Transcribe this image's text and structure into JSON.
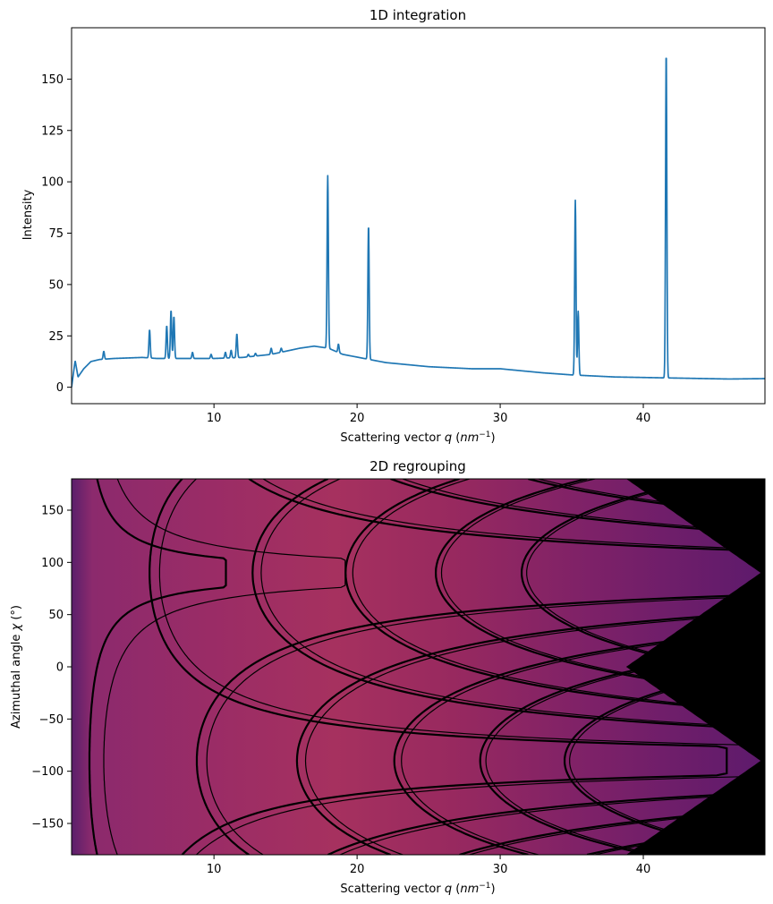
{
  "chart_data": [
    {
      "type": "line",
      "title": "1D integration",
      "xlabel": "Scattering vector q (nm⁻¹)",
      "ylabel": "Intensity",
      "xlim": [
        0.05,
        48.5
      ],
      "ylim": [
        -8,
        175
      ],
      "xticks": [
        10,
        20,
        30,
        40
      ],
      "yticks": [
        0,
        25,
        50,
        75,
        100,
        125,
        150
      ],
      "line_color": "#1f77b4",
      "baseline": [
        [
          0.05,
          0
        ],
        [
          0.3,
          13
        ],
        [
          0.5,
          5
        ],
        [
          0.9,
          9
        ],
        [
          1.4,
          12.5
        ],
        [
          2,
          13.5
        ],
        [
          3,
          14
        ],
        [
          5,
          14.5
        ],
        [
          6,
          14
        ],
        [
          8,
          14
        ],
        [
          10,
          14
        ],
        [
          12,
          14.5
        ],
        [
          14,
          16
        ],
        [
          16,
          19
        ],
        [
          17,
          20
        ],
        [
          18,
          19
        ],
        [
          19,
          16
        ],
        [
          22,
          12
        ],
        [
          25,
          10
        ],
        [
          28,
          9
        ],
        [
          30,
          9
        ],
        [
          33,
          7
        ],
        [
          35,
          6
        ],
        [
          38,
          5
        ],
        [
          42,
          4.5
        ],
        [
          46,
          4
        ],
        [
          48.5,
          4.2
        ]
      ],
      "peaks": [
        {
          "q": 2.3,
          "height": 17.5
        },
        {
          "q": 5.5,
          "height": 28
        },
        {
          "q": 6.7,
          "height": 30
        },
        {
          "q": 7.0,
          "height": 37.5
        },
        {
          "q": 7.2,
          "height": 34.5
        },
        {
          "q": 8.5,
          "height": 17
        },
        {
          "q": 9.8,
          "height": 16
        },
        {
          "q": 10.8,
          "height": 17
        },
        {
          "q": 11.2,
          "height": 18
        },
        {
          "q": 11.6,
          "height": 26
        },
        {
          "q": 12.4,
          "height": 16
        },
        {
          "q": 12.9,
          "height": 16.5
        },
        {
          "q": 14.0,
          "height": 19
        },
        {
          "q": 14.7,
          "height": 19
        },
        {
          "q": 17.95,
          "height": 103
        },
        {
          "q": 18.7,
          "height": 21
        },
        {
          "q": 20.8,
          "height": 79
        },
        {
          "q": 35.25,
          "height": 91
        },
        {
          "q": 35.45,
          "height": 37
        },
        {
          "q": 41.6,
          "height": 164
        }
      ]
    },
    {
      "type": "heatmap",
      "title": "2D regrouping",
      "xlabel": "Scattering vector q (nm⁻¹)",
      "ylabel": "Azimuthal angle χ (°)",
      "xlim": [
        0.05,
        48.5
      ],
      "ylim": [
        -180,
        180
      ],
      "xticks": [
        10,
        20,
        30,
        40
      ],
      "yticks": [
        150,
        100,
        50,
        0,
        -50,
        -100,
        -150
      ],
      "colormap": "inferno",
      "gap_color": "#000000",
      "rings": [
        {
          "center_chi": 90,
          "q_min": 5.5,
          "thickness": 0.7
        },
        {
          "center_chi": 90,
          "q_min": 12.7,
          "thickness": 0.6
        },
        {
          "center_chi": 90,
          "q_min": 19.2,
          "thickness": 0.5
        },
        {
          "center_chi": 90,
          "q_min": 25.5,
          "thickness": 0.4
        },
        {
          "center_chi": 90,
          "q_min": 31.5,
          "thickness": 0.35
        },
        {
          "center_chi": -90,
          "q_min": 1.3,
          "thickness": 1.0
        },
        {
          "center_chi": -90,
          "q_min": 8.8,
          "thickness": 0.7
        },
        {
          "center_chi": -90,
          "q_min": 15.8,
          "thickness": 0.6
        },
        {
          "center_chi": -90,
          "q_min": 22.6,
          "thickness": 0.5
        },
        {
          "center_chi": -90,
          "q_min": 28.6,
          "thickness": 0.4
        },
        {
          "center_chi": -90,
          "q_min": 34.5,
          "thickness": 0.35
        }
      ]
    }
  ]
}
